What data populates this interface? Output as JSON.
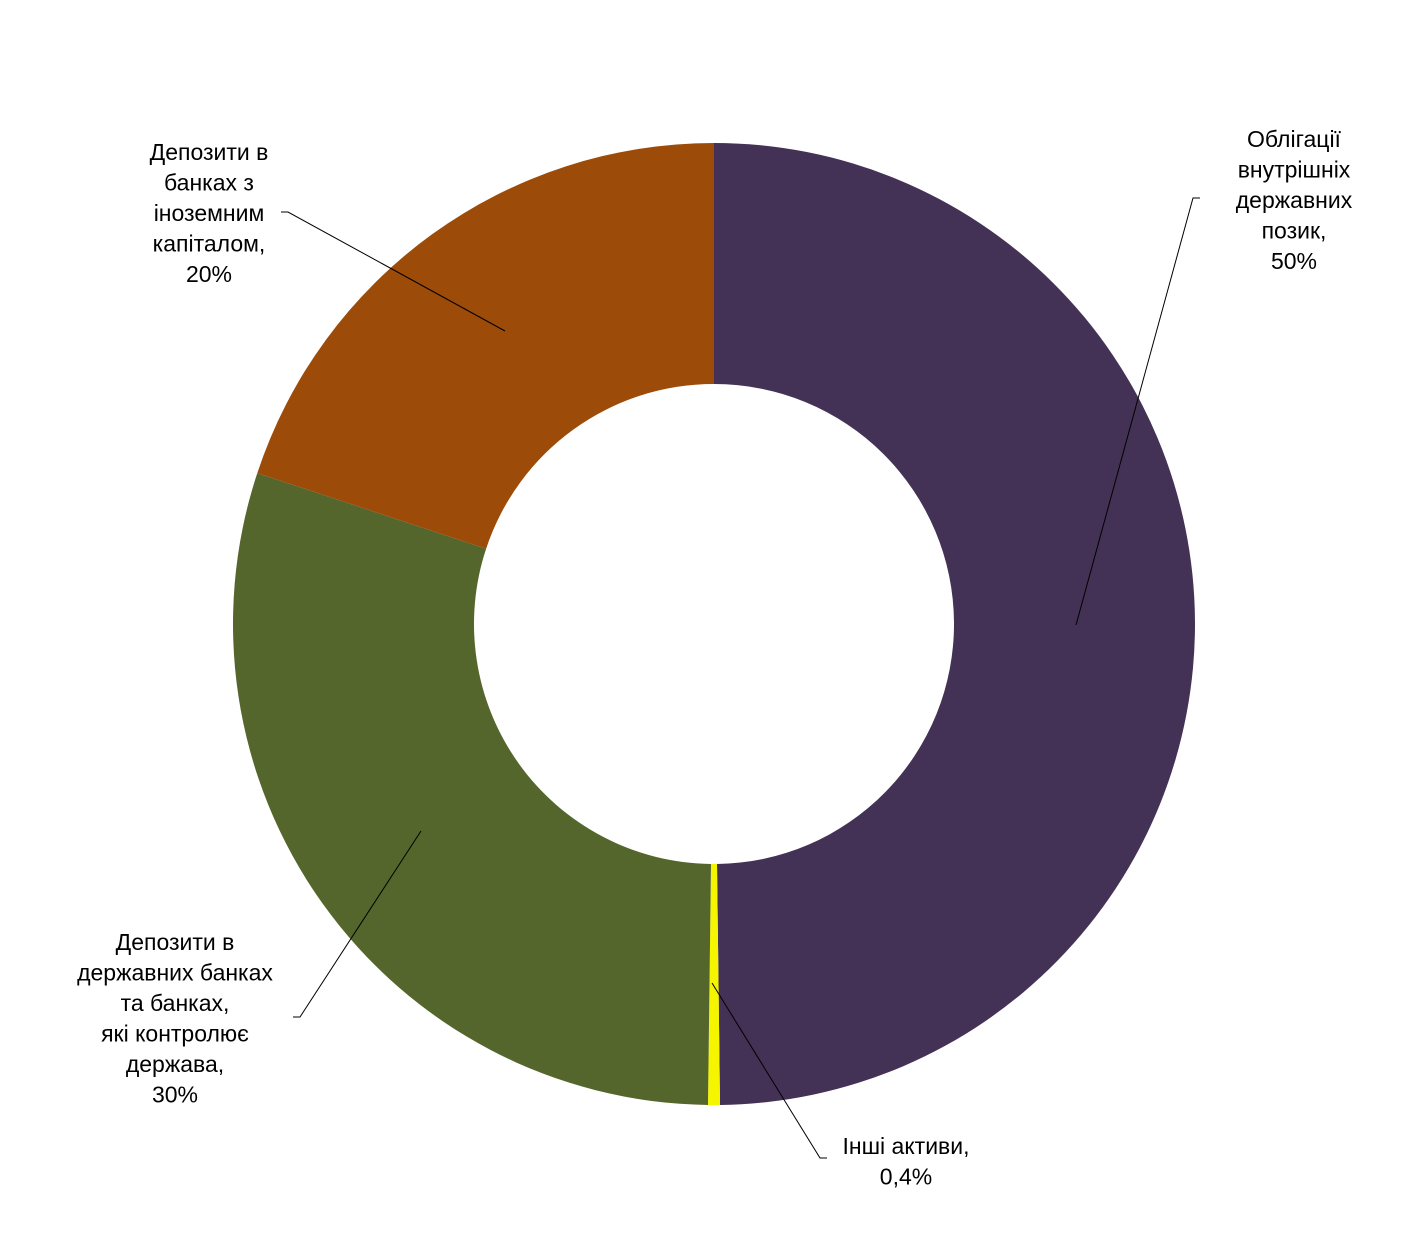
{
  "chart_data": {
    "type": "pie",
    "variant": "donut",
    "title": "",
    "legend": "none",
    "slices": [
      {
        "name": "Облігації внутрішніх державних позик",
        "value": 50,
        "value_label": "50%",
        "color": "#433255",
        "label_lines": [
          "Облігації",
          "внутрішніх",
          "державних",
          "позик,",
          "50%"
        ]
      },
      {
        "name": "Інші активи",
        "value": 0.4,
        "value_label": "0,4%",
        "color": "#f5f500",
        "label_lines": [
          "Інші активи,",
          "0,4%"
        ]
      },
      {
        "name": "Депозити в державних банках та банках, які контролює держава",
        "value": 30,
        "value_label": "30%",
        "color": "#54662b",
        "label_lines": [
          "Депозити в",
          "державних банках",
          "та банках,",
          "які контролює",
          "держава,",
          "30%"
        ]
      },
      {
        "name": "Депозити в банках з іноземним капіталом",
        "value": 20,
        "value_label": "20%",
        "color": "#9c4b08",
        "label_lines": [
          "Депозити в",
          "банках з",
          "іноземним",
          "капіталом,",
          "20%"
        ]
      }
    ]
  }
}
